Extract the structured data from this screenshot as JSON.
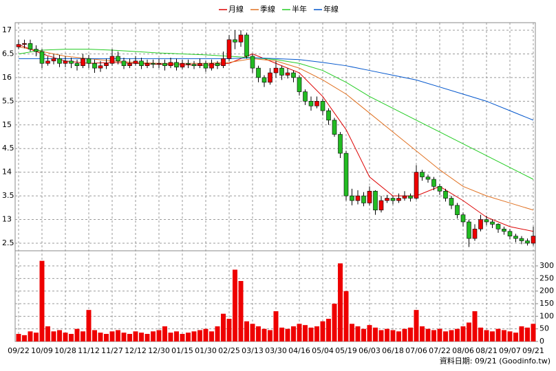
{
  "chart_data": {
    "type": "candlestick",
    "categories": [
      "09/22",
      null,
      null,
      null,
      "10/09",
      null,
      null,
      null,
      "10/28",
      null,
      null,
      null,
      "11/12",
      null,
      null,
      null,
      "11/27",
      null,
      null,
      null,
      "12/12",
      null,
      null,
      null,
      "12/30",
      null,
      null,
      null,
      "01/15",
      null,
      null,
      null,
      "01/30",
      null,
      null,
      null,
      "02/25",
      null,
      null,
      null,
      "03/13",
      null,
      null,
      null,
      "03/30",
      null,
      null,
      null,
      "04/16",
      null,
      null,
      null,
      "05/04",
      null,
      null,
      null,
      "05/19",
      null,
      null,
      null,
      "06/03",
      null,
      null,
      null,
      "06/18",
      null,
      null,
      null,
      "07/06",
      null,
      null,
      null,
      "07/22",
      null,
      null,
      null,
      "08/06",
      null,
      null,
      null,
      "08/21",
      null,
      null,
      null,
      "09/07",
      null,
      null,
      null,
      "09/21"
    ],
    "open": [
      16.65,
      16.7,
      16.72,
      16.6,
      16.55,
      16.3,
      16.35,
      16.4,
      16.3,
      16.35,
      16.3,
      16.25,
      16.4,
      16.3,
      16.2,
      16.25,
      16.3,
      16.45,
      16.35,
      16.25,
      16.3,
      16.35,
      16.25,
      16.3,
      16.28,
      16.3,
      16.25,
      16.32,
      16.22,
      16.3,
      16.28,
      16.25,
      16.3,
      16.2,
      16.3,
      16.25,
      16.4,
      16.8,
      16.75,
      16.9,
      16.45,
      16.2,
      16.0,
      15.9,
      16.1,
      16.2,
      16.05,
      16.1,
      16.0,
      15.7,
      15.5,
      15.4,
      15.5,
      15.3,
      15.1,
      14.8,
      14.4,
      13.5,
      13.4,
      13.5,
      13.35,
      13.6,
      13.2,
      13.4,
      13.45,
      13.4,
      13.45,
      13.5,
      13.45,
      14.0,
      13.9,
      13.85,
      13.7,
      13.6,
      13.45,
      13.3,
      13.1,
      12.95,
      12.6,
      12.8,
      13.0,
      12.95,
      12.9,
      12.8,
      12.75,
      12.65,
      12.6,
      12.55,
      12.5
    ],
    "high": [
      16.8,
      16.8,
      16.8,
      16.68,
      16.6,
      16.45,
      16.5,
      16.48,
      16.45,
      16.42,
      16.38,
      16.5,
      16.48,
      16.38,
      16.35,
      16.4,
      16.6,
      16.55,
      16.42,
      16.4,
      16.45,
      16.42,
      16.38,
      16.38,
      16.4,
      16.38,
      16.42,
      16.4,
      16.38,
      16.38,
      16.35,
      16.4,
      16.35,
      16.38,
      16.35,
      16.55,
      16.9,
      17.0,
      17.0,
      16.95,
      16.5,
      16.25,
      16.05,
      16.2,
      16.35,
      16.25,
      16.2,
      16.15,
      16.05,
      15.75,
      15.6,
      15.6,
      15.55,
      15.35,
      15.15,
      14.85,
      14.45,
      13.65,
      13.62,
      13.58,
      13.7,
      13.62,
      13.5,
      13.52,
      13.5,
      13.55,
      13.6,
      13.55,
      14.15,
      14.05,
      13.95,
      13.9,
      13.75,
      13.65,
      13.5,
      13.35,
      13.15,
      13.0,
      12.9,
      13.1,
      13.08,
      13.0,
      12.92,
      12.85,
      12.8,
      12.7,
      12.65,
      12.6,
      12.85
    ],
    "low": [
      16.6,
      16.62,
      16.55,
      16.45,
      16.2,
      16.25,
      16.28,
      16.22,
      16.22,
      16.2,
      16.15,
      16.2,
      16.2,
      16.1,
      16.12,
      16.18,
      16.25,
      16.28,
      16.18,
      16.2,
      16.25,
      16.18,
      16.2,
      16.2,
      16.2,
      16.15,
      16.2,
      16.15,
      16.18,
      16.2,
      16.18,
      16.2,
      16.12,
      16.15,
      16.18,
      16.2,
      16.35,
      16.6,
      16.65,
      16.4,
      16.1,
      15.9,
      15.8,
      15.85,
      16.0,
      15.95,
      15.98,
      15.9,
      15.62,
      15.42,
      15.3,
      15.35,
      15.2,
      15.0,
      14.75,
      14.3,
      13.4,
      13.3,
      13.32,
      13.28,
      13.3,
      13.1,
      13.15,
      13.35,
      13.32,
      13.35,
      13.4,
      13.38,
      13.42,
      13.82,
      13.78,
      13.62,
      13.52,
      13.38,
      13.22,
      13.02,
      12.85,
      12.42,
      12.55,
      12.75,
      12.88,
      12.82,
      12.72,
      12.68,
      12.58,
      12.52,
      12.48,
      12.45,
      12.45
    ],
    "close": [
      16.7,
      16.72,
      16.6,
      16.55,
      16.3,
      16.35,
      16.4,
      16.3,
      16.35,
      16.3,
      16.25,
      16.4,
      16.3,
      16.2,
      16.25,
      16.3,
      16.45,
      16.35,
      16.25,
      16.3,
      16.35,
      16.25,
      16.3,
      16.28,
      16.3,
      16.25,
      16.32,
      16.22,
      16.3,
      16.28,
      16.25,
      16.3,
      16.2,
      16.3,
      16.25,
      16.4,
      16.8,
      16.75,
      16.9,
      16.45,
      16.2,
      16.0,
      15.9,
      16.1,
      16.2,
      16.05,
      16.1,
      16.0,
      15.7,
      15.5,
      15.4,
      15.5,
      15.3,
      15.1,
      14.8,
      14.4,
      13.5,
      13.4,
      13.5,
      13.35,
      13.6,
      13.2,
      13.4,
      13.45,
      13.4,
      13.45,
      13.5,
      13.45,
      14.0,
      13.9,
      13.85,
      13.7,
      13.6,
      13.45,
      13.3,
      13.1,
      12.95,
      12.6,
      12.8,
      13.0,
      12.95,
      12.9,
      12.8,
      12.75,
      12.65,
      12.6,
      12.55,
      12.5,
      12.65
    ],
    "volume": [
      30,
      25,
      40,
      35,
      320,
      60,
      40,
      45,
      35,
      30,
      50,
      40,
      125,
      45,
      35,
      30,
      40,
      45,
      35,
      30,
      40,
      35,
      30,
      40,
      45,
      60,
      35,
      40,
      30,
      35,
      40,
      45,
      50,
      40,
      60,
      110,
      90,
      285,
      240,
      80,
      70,
      60,
      50,
      45,
      120,
      55,
      50,
      60,
      70,
      65,
      55,
      60,
      80,
      90,
      150,
      310,
      200,
      70,
      60,
      50,
      65,
      55,
      45,
      50,
      45,
      40,
      50,
      55,
      125,
      60,
      50,
      45,
      50,
      40,
      45,
      50,
      60,
      75,
      120,
      55,
      45,
      40,
      50,
      45,
      40,
      35,
      60,
      55,
      70
    ],
    "up_color": "#ee0000",
    "down_color": "#22bb22",
    "volume_color": "#ee0000",
    "x": [
      0,
      4,
      8,
      12,
      16,
      20,
      24,
      28,
      32,
      36,
      40,
      44,
      48,
      52,
      56,
      60,
      64,
      68,
      72,
      76,
      80,
      84,
      88
    ],
    "series": [
      {
        "name": "月線",
        "color": "#dd0000",
        "values": [
          16.7,
          16.5,
          16.35,
          16.3,
          16.32,
          16.3,
          16.28,
          16.27,
          16.26,
          16.3,
          16.5,
          16.3,
          16.1,
          15.6,
          14.9,
          13.9,
          13.5,
          13.5,
          13.7,
          13.4,
          13.05,
          12.85,
          12.75
        ]
      },
      {
        "name": "季線",
        "color": "#e07020",
        "values": [
          16.65,
          16.55,
          16.45,
          16.4,
          16.35,
          16.32,
          16.3,
          16.3,
          16.3,
          16.32,
          16.4,
          16.35,
          16.2,
          15.95,
          15.65,
          15.25,
          14.85,
          14.45,
          14.05,
          13.7,
          13.5,
          13.35,
          13.2
        ]
      },
      {
        "name": "半年",
        "color": "#22cc22",
        "values": [
          16.5,
          16.58,
          16.6,
          16.6,
          16.58,
          16.55,
          16.52,
          16.5,
          16.48,
          16.45,
          16.42,
          16.38,
          16.3,
          16.15,
          15.9,
          15.6,
          15.35,
          15.1,
          14.85,
          14.6,
          14.35,
          14.1,
          13.85
        ]
      },
      {
        "name": "年線",
        "color": "#0055cc",
        "values": [
          16.4,
          16.4,
          16.4,
          16.4,
          16.4,
          16.4,
          16.4,
          16.4,
          16.4,
          16.4,
          16.42,
          16.4,
          16.38,
          16.32,
          16.25,
          16.15,
          16.05,
          15.95,
          15.8,
          15.65,
          15.5,
          15.3,
          15.1
        ]
      }
    ],
    "ylim": [
      12.34,
      17.16
    ],
    "yticks": [
      {
        "value": 12.5,
        "label": "2.5"
      },
      13,
      {
        "value": 13.5,
        "label": "3.5"
      },
      14,
      {
        "value": 14.5,
        "label": "4.5"
      },
      15,
      {
        "value": 15.5,
        "label": "5.5"
      },
      16,
      {
        "value": 16.5,
        "label": "6.5"
      },
      17
    ],
    "y2lim": [
      0,
      360
    ],
    "y2ticks": [
      0,
      50,
      100,
      150,
      200,
      250,
      300
    ],
    "grid": true,
    "footer": "資料日期: 09/21 (Goodinfo.tw)"
  }
}
